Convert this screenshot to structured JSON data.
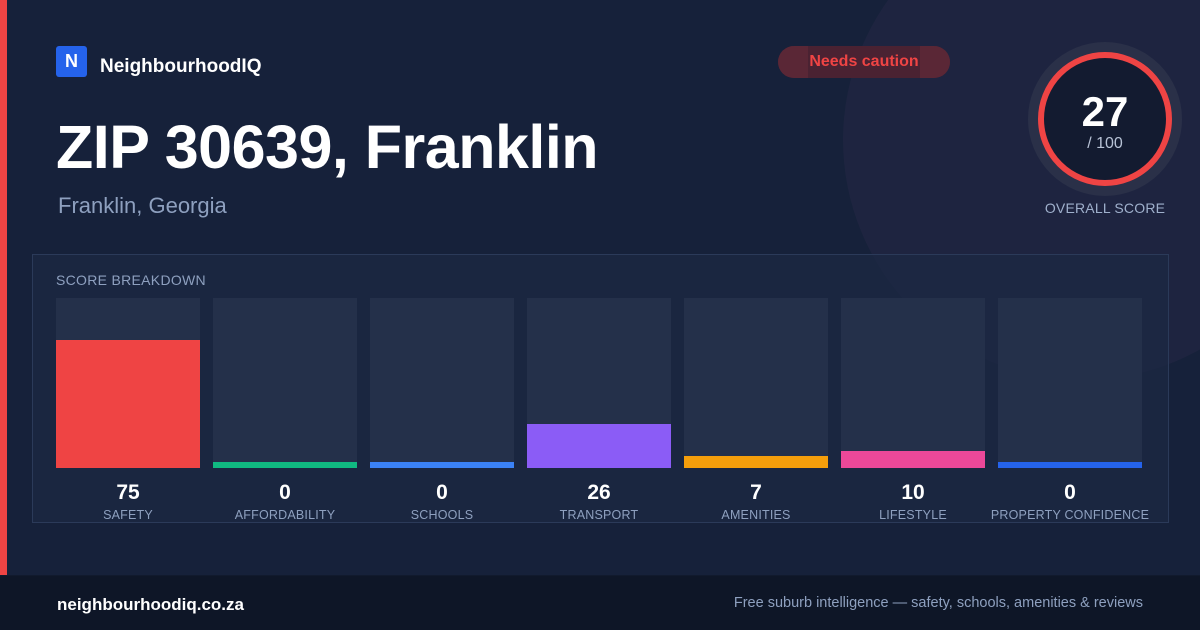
{
  "brand": {
    "logo_letter": "N",
    "name": "NeighbourhoodIQ",
    "accent_color": "#2563eb"
  },
  "status_badge": {
    "label": "Needs caution",
    "color": "#ef4444"
  },
  "hero": {
    "title": "ZIP 30639, Franklin",
    "subtitle": "Franklin, Georgia"
  },
  "overall_score": {
    "value": "27",
    "max_label": "/ 100",
    "caption": "OVERALL SCORE",
    "ring_color": "#ef4444"
  },
  "breakdown": {
    "title": "SCORE BREAKDOWN",
    "items": [
      {
        "label": "SAFETY",
        "value": "75",
        "score": 75,
        "color": "#ef4444"
      },
      {
        "label": "AFFORDABILITY",
        "value": "0",
        "score": 0,
        "color": "#10b981"
      },
      {
        "label": "SCHOOLS",
        "value": "0",
        "score": 0,
        "color": "#3b82f6"
      },
      {
        "label": "TRANSPORT",
        "value": "26",
        "score": 26,
        "color": "#8b5cf6"
      },
      {
        "label": "AMENITIES",
        "value": "7",
        "score": 7,
        "color": "#f59e0b"
      },
      {
        "label": "LIFESTYLE",
        "value": "10",
        "score": 10,
        "color": "#ec4899"
      },
      {
        "label": "PROPERTY CONFIDENCE",
        "value": "0",
        "score": 0,
        "color": "#2563eb"
      }
    ]
  },
  "footer": {
    "site": "neighbourhoodiq.co.za",
    "tagline": "Free suburb intelligence — safety, schools, amenities & reviews"
  }
}
